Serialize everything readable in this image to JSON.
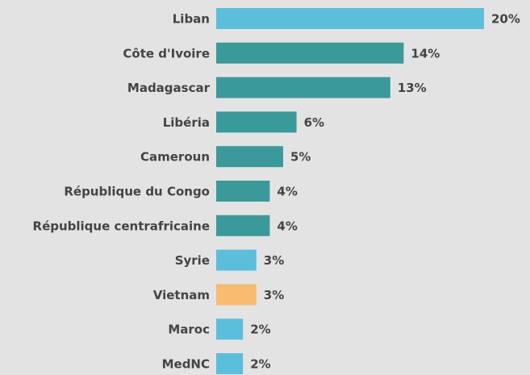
{
  "chart_data": {
    "type": "barh",
    "categories": [
      "Liban",
      "Côte d'Ivoire",
      "Madagascar",
      "Libéria",
      "Cameroun",
      "République du Congo",
      "République centrafricaine",
      "Syrie",
      "Vietnam",
      "Maroc",
      "MedNC"
    ],
    "values": [
      20,
      14,
      13,
      6,
      5,
      4,
      4,
      3,
      3,
      2,
      2
    ],
    "value_labels": [
      "20%",
      "14%",
      "13%",
      "6%",
      "5%",
      "4%",
      "4%",
      "3%",
      "3%",
      "2%",
      "2%"
    ],
    "colors": [
      "#5bbfdb",
      "#3a9a9a",
      "#3a9a9a",
      "#3a9a9a",
      "#3a9a9a",
      "#3a9a9a",
      "#3a9a9a",
      "#5bbfdb",
      "#f8bb6f",
      "#5bbfdb",
      "#5bbfdb"
    ]
  }
}
